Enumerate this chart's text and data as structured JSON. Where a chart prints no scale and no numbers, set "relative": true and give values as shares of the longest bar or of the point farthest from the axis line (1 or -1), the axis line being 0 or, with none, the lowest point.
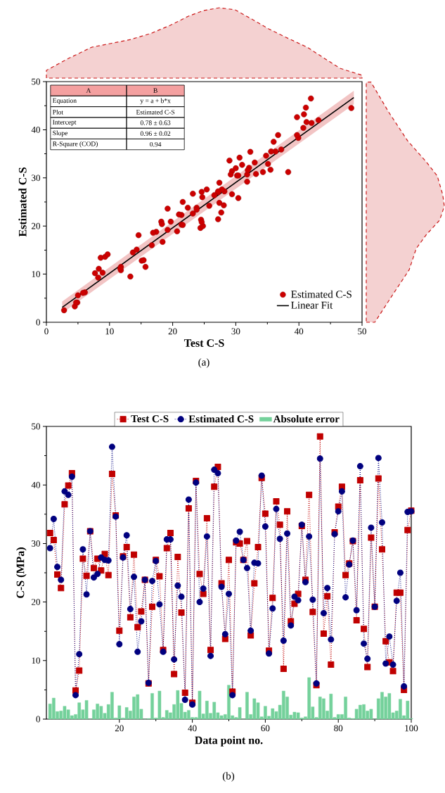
{
  "chart_data": [
    {
      "type": "scatter",
      "xlabel": "Test C-S",
      "ylabel": "Estimated C-S",
      "xlim": [
        0,
        50
      ],
      "ylim": [
        0,
        50
      ],
      "xticks": [
        0,
        10,
        20,
        30,
        40,
        50
      ],
      "yticks": [
        0,
        10,
        20,
        30,
        40,
        50
      ],
      "legend": "bottom right",
      "marker": "circle",
      "series": [
        {
          "name": "Estimated C-S",
          "color": "#cc0000",
          "x": [
            31.8,
            30.6,
            24.7,
            22.4,
            36.7,
            39.9,
            42.0,
            4.9,
            8.3,
            27.4,
            24.5,
            32.1,
            25.8,
            27.4,
            25.4,
            28.2,
            24.6,
            41.9,
            34.8,
            15.1,
            27.8,
            29.4,
            17.4,
            28.1,
            15.7,
            18.4,
            23.8,
            6.1,
            19.2,
            27.2,
            24.4,
            11.8,
            29.2,
            31.8,
            7.7,
            27.7,
            18.2,
            4.5,
            36.0,
            2.8,
            40.7,
            24.8,
            21.4,
            34.3,
            11.8,
            39.7,
            43.1,
            23.2,
            13.7,
            27.2,
            4.7,
            30.2,
            30.0,
            27.2,
            30.4,
            14.3,
            23.2,
            29.4,
            41.2,
            35.1,
            11.7,
            20.7,
            37.2,
            33.2,
            8.6,
            35.5,
            16.7,
            19.7,
            21.4,
            33.0,
            23.8,
            38.3,
            18.3,
            5.8,
            48.3,
            14.6,
            21.0,
            9.3,
            31.9,
            36.3,
            39.7,
            24.6,
            26.6,
            30.4,
            16.9,
            40.8,
            15.4,
            8.9,
            31.0,
            19.2,
            41.1,
            29.0,
            13.3,
            9.7,
            8.2,
            21.6,
            21.6,
            5.0,
            32.3,
            35.6
          ],
          "values": [
            29.2,
            34.2,
            26.0,
            23.8,
            38.9,
            38.3,
            41.4,
            4.1,
            11.1,
            29.0,
            21.3,
            32.1,
            24.2,
            24.8,
            27.6,
            27.2,
            27.1,
            46.5,
            34.6,
            12.8,
            27.6,
            31.4,
            18.8,
            24.3,
            11.5,
            16.7,
            23.8,
            6.2,
            23.6,
            27.0,
            19.6,
            11.5,
            30.7,
            30.7,
            10.2,
            22.8,
            20.9,
            3.3,
            37.5,
            2.5,
            40.4,
            20.0,
            22.3,
            31.2,
            10.8,
            42.6,
            42.0,
            22.6,
            14.5,
            21.4,
            4.1,
            30.5,
            32.0,
            27.2,
            25.8,
            15.1,
            26.7,
            26.6,
            41.6,
            32.9,
            11.2,
            18.9,
            35.9,
            30.8,
            13.4,
            31.7,
            16.0,
            20.9,
            20.3,
            33.2,
            23.4,
            31.2,
            20.4,
            6.1,
            44.5,
            18.1,
            22.4,
            13.6,
            31.6,
            35.5,
            38.9,
            20.8,
            26.4,
            30.5,
            18.6,
            43.2,
            12.9,
            10.3,
            32.7,
            19.2,
            44.6,
            33.6,
            9.5,
            14.1,
            9.3,
            20.2,
            25.0,
            5.6,
            35.4,
            35.5
          ]
        },
        {
          "name": "Linear Fit",
          "type": "line",
          "color": "#000000",
          "marker": "none",
          "x": [
            2.5,
            48.7
          ],
          "values": [
            3.1,
            46.7
          ],
          "lower": [
            1.9,
            45.3
          ],
          "upper": [
            4.3,
            48.1
          ]
        }
      ],
      "annotations": [
        "A",
        "B",
        "Equation",
        "y = a + b*x",
        "Plot",
        "Estimated C-S",
        "Intercept",
        "0.78 ± 0.63",
        "Slope",
        "0.96 ± 0.02",
        "R-Square (COD)",
        "0.94",
        "(a)"
      ]
    },
    {
      "type": "area",
      "relative": true,
      "xlim": [
        0,
        50
      ],
      "color": "#f4d1d1",
      "line_style": "dashed",
      "x": [
        0,
        3.5,
        7.2,
        10.1,
        13.4,
        16.7,
        19.6,
        22.5,
        24.9,
        27.4,
        29.9,
        32.3,
        35.2,
        38.4,
        41.3,
        43.7,
        46.5,
        50
      ],
      "values": [
        0.11,
        0.28,
        0.44,
        0.49,
        0.55,
        0.64,
        0.75,
        0.88,
        0.96,
        1.0,
        0.97,
        0.85,
        0.7,
        0.56,
        0.44,
        0.3,
        0.14,
        0.04
      ]
    },
    {
      "type": "area",
      "orientation": "horizontal",
      "relative": true,
      "ylim": [
        0,
        50
      ],
      "color": "#f4d1d1",
      "line_style": "dashed",
      "x": [
        0,
        6.0,
        10.9,
        15.3,
        18.2,
        21.2,
        24.1,
        26.5,
        30.4,
        33.3,
        37.7,
        43.6,
        49.9
      ],
      "values": [
        0.11,
        0.35,
        0.55,
        0.64,
        0.77,
        0.94,
        1.0,
        0.98,
        0.91,
        0.77,
        0.53,
        0.29,
        0.06
      ]
    },
    {
      "type": "line",
      "xlabel": "Data point no.",
      "ylabel": "C-S (MPa)",
      "xlim": [
        0,
        100
      ],
      "ylim": [
        0,
        50
      ],
      "xticks": [
        20,
        40,
        60,
        80,
        100
      ],
      "yticks": [
        0,
        10,
        20,
        30,
        40,
        50
      ],
      "legend": "top",
      "line_style": "dotted",
      "x": [
        1,
        2,
        3,
        4,
        5,
        6,
        7,
        8,
        9,
        10,
        11,
        12,
        13,
        14,
        15,
        16,
        17,
        18,
        19,
        20,
        21,
        22,
        23,
        24,
        25,
        26,
        27,
        28,
        29,
        30,
        31,
        32,
        33,
        34,
        35,
        36,
        37,
        38,
        39,
        40,
        41,
        42,
        43,
        44,
        45,
        46,
        47,
        48,
        49,
        50,
        51,
        52,
        53,
        54,
        55,
        56,
        57,
        58,
        59,
        60,
        61,
        62,
        63,
        64,
        65,
        66,
        67,
        68,
        69,
        70,
        71,
        72,
        73,
        74,
        75,
        76,
        77,
        78,
        79,
        80,
        81,
        82,
        83,
        84,
        85,
        86,
        87,
        88,
        89,
        90,
        91,
        92,
        93,
        94,
        95,
        96,
        97,
        98,
        99,
        100
      ],
      "series": [
        {
          "name": "Test C-S",
          "color": "#c00000",
          "marker": "square",
          "values": [
            31.8,
            30.6,
            24.7,
            22.4,
            36.7,
            39.9,
            42.0,
            4.9,
            8.3,
            27.4,
            24.5,
            32.1,
            25.8,
            27.4,
            25.4,
            28.2,
            24.6,
            41.9,
            34.8,
            15.1,
            27.8,
            29.4,
            17.4,
            28.1,
            15.7,
            18.4,
            23.8,
            6.1,
            19.2,
            27.2,
            24.4,
            11.8,
            29.2,
            31.8,
            7.7,
            27.7,
            18.2,
            4.5,
            36.0,
            2.8,
            40.7,
            24.8,
            21.4,
            34.3,
            11.8,
            39.7,
            43.1,
            23.2,
            13.7,
            27.2,
            4.7,
            30.2,
            30.0,
            27.2,
            30.4,
            14.3,
            23.2,
            29.4,
            41.2,
            35.1,
            11.7,
            20.7,
            37.2,
            33.2,
            8.6,
            35.5,
            16.7,
            19.7,
            21.4,
            33.0,
            23.8,
            38.3,
            18.3,
            5.8,
            48.3,
            14.6,
            21.0,
            9.3,
            31.9,
            36.3,
            39.7,
            24.6,
            26.6,
            30.4,
            16.9,
            40.8,
            15.4,
            8.9,
            31.0,
            19.2,
            41.1,
            29.0,
            13.3,
            9.7,
            8.2,
            21.6,
            21.6,
            5.0,
            32.3,
            35.6
          ]
        },
        {
          "name": "Estimated C-S",
          "color": "#00007f",
          "marker": "circle",
          "values": [
            29.2,
            34.2,
            26.0,
            23.8,
            38.9,
            38.3,
            41.4,
            4.1,
            11.1,
            29.0,
            21.3,
            32.1,
            24.2,
            24.8,
            27.6,
            27.2,
            27.1,
            46.5,
            34.6,
            12.8,
            27.6,
            31.4,
            18.8,
            24.3,
            11.5,
            16.7,
            23.8,
            6.2,
            23.6,
            27.0,
            19.6,
            11.5,
            30.7,
            30.7,
            10.2,
            22.8,
            20.9,
            3.3,
            37.5,
            2.5,
            40.4,
            20.0,
            22.3,
            31.2,
            10.8,
            42.6,
            42.0,
            22.6,
            14.5,
            21.4,
            4.1,
            30.5,
            32.0,
            27.2,
            25.8,
            15.1,
            26.7,
            26.6,
            41.6,
            32.9,
            11.2,
            18.9,
            35.9,
            30.8,
            13.4,
            31.7,
            16.0,
            20.9,
            20.3,
            33.2,
            23.4,
            31.2,
            20.4,
            6.1,
            44.5,
            18.1,
            22.4,
            13.6,
            31.6,
            35.5,
            38.9,
            20.8,
            26.4,
            30.5,
            18.6,
            43.2,
            12.9,
            10.3,
            32.7,
            19.2,
            44.6,
            33.6,
            9.5,
            14.1,
            9.3,
            20.2,
            25.0,
            5.6,
            35.4,
            35.5
          ]
        },
        {
          "name": "Absolute error",
          "type": "bar",
          "color": "#74d19b",
          "values": [
            2.6,
            3.6,
            1.3,
            1.4,
            2.2,
            1.6,
            0.6,
            0.8,
            2.8,
            1.6,
            3.2,
            0.0,
            1.6,
            2.6,
            2.2,
            1.0,
            2.5,
            4.6,
            0.2,
            2.3,
            0.2,
            2.0,
            1.4,
            3.8,
            4.2,
            1.7,
            0.0,
            0.1,
            4.4,
            0.2,
            4.8,
            0.3,
            1.5,
            1.1,
            2.5,
            4.9,
            2.7,
            1.2,
            1.5,
            0.3,
            0.3,
            4.8,
            0.9,
            3.1,
            1.0,
            2.9,
            1.1,
            0.6,
            0.8,
            5.8,
            0.6,
            0.3,
            2.0,
            0.0,
            4.6,
            0.8,
            3.5,
            2.8,
            0.4,
            2.2,
            0.5,
            1.8,
            1.3,
            2.4,
            4.8,
            3.8,
            0.7,
            1.2,
            1.1,
            0.2,
            0.4,
            7.1,
            2.1,
            0.3,
            3.8,
            3.5,
            1.4,
            4.3,
            0.3,
            0.8,
            0.8,
            3.8,
            0.2,
            0.1,
            1.7,
            2.4,
            2.5,
            1.4,
            1.7,
            0.0,
            3.5,
            4.6,
            3.8,
            4.4,
            1.1,
            1.4,
            3.4,
            0.6,
            3.1,
            0.1
          ]
        }
      ],
      "annotations": [
        "(b)"
      ]
    }
  ]
}
